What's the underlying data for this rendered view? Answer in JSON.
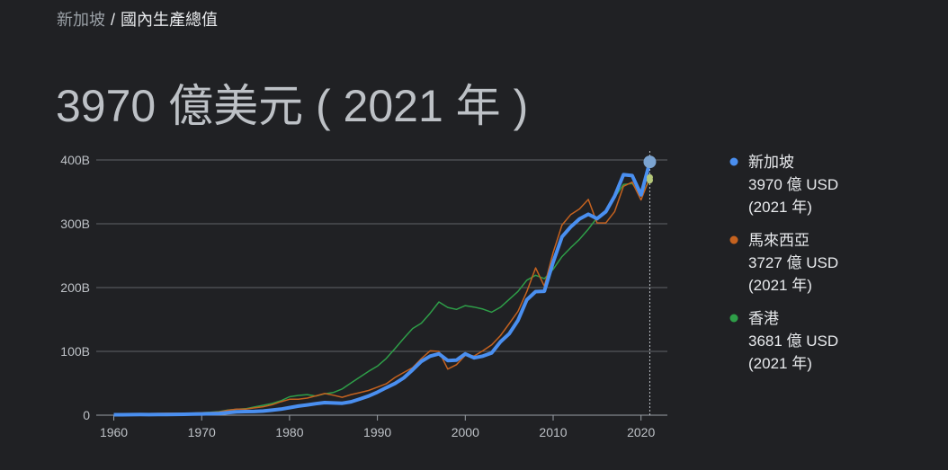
{
  "breadcrumb": {
    "country": "新加坡",
    "separator": "/",
    "topic": "國內生產總值"
  },
  "headline": "3970 億美元 ( 2021 年 )",
  "chart_data": {
    "type": "line",
    "x": [
      1960,
      1961,
      1962,
      1963,
      1964,
      1965,
      1966,
      1967,
      1968,
      1969,
      1970,
      1971,
      1972,
      1973,
      1974,
      1975,
      1976,
      1977,
      1978,
      1979,
      1980,
      1981,
      1982,
      1983,
      1984,
      1985,
      1986,
      1987,
      1988,
      1989,
      1990,
      1991,
      1992,
      1993,
      1994,
      1995,
      1996,
      1997,
      1998,
      1999,
      2000,
      2001,
      2002,
      2003,
      2004,
      2005,
      2006,
      2007,
      2008,
      2009,
      2010,
      2011,
      2012,
      2013,
      2014,
      2015,
      2016,
      2017,
      2018,
      2019,
      2020,
      2021
    ],
    "xlim": [
      1958,
      2023
    ],
    "xticks": [
      1960,
      1970,
      1980,
      1990,
      2000,
      2010,
      2020
    ],
    "ylim": [
      0,
      400
    ],
    "yticks": [
      0,
      {
        "value": 100,
        "label": "100B"
      },
      {
        "value": 200,
        "label": "200B"
      },
      {
        "value": 300,
        "label": "300B"
      },
      {
        "value": 400,
        "label": "400B"
      }
    ],
    "grid": true,
    "series": [
      {
        "name": "新加坡",
        "color": "#4a8ff0",
        "value_label": "3970 億 USD",
        "year_label": "(2021 年)",
        "values": [
          0.7,
          0.76,
          0.83,
          0.92,
          0.89,
          0.97,
          1.08,
          1.24,
          1.43,
          1.68,
          1.92,
          2.26,
          2.72,
          4.1,
          5.2,
          5.7,
          5.8,
          6.5,
          7.9,
          9.5,
          11.9,
          14.2,
          16.1,
          18.0,
          19.7,
          19.1,
          18.7,
          21.0,
          25.4,
          30.0,
          36.1,
          43.1,
          49.7,
          58.4,
          71.0,
          84.3,
          92.5,
          96.2,
          85.7,
          86.3,
          96.1,
          89.8,
          92.5,
          97.6,
          115,
          127.8,
          148.6,
          180.9,
          193.6,
          194.2,
          239.8,
          279.4,
          295.1,
          307.6,
          314.9,
          308.0,
          319.0,
          343.3,
          376.9,
          375.5,
          345.3,
          397.0
        ]
      },
      {
        "name": "馬來西亞",
        "color": "#c5621f",
        "value_label": "3727 億 USD",
        "year_label": "(2021 年)",
        "values": [
          1.9,
          1.9,
          2.0,
          2.2,
          2.4,
          2.7,
          2.9,
          2.98,
          3.0,
          3.3,
          3.9,
          4.2,
          5.0,
          7.7,
          9.5,
          9.6,
          11.4,
          13.3,
          16.4,
          21.0,
          24.9,
          25.0,
          26.8,
          30.3,
          33.9,
          31.2,
          28.0,
          32.2,
          35.3,
          38.8,
          44.0,
          49.1,
          59.2,
          66.9,
          74.5,
          88.7,
          100.9,
          100.0,
          72.2,
          79.1,
          93.8,
          92.8,
          100.8,
          110.2,
          124.7,
          143.5,
          162.7,
          193.5,
          230.8,
          202.3,
          255.0,
          297.9,
          314.4,
          323.3,
          338.1,
          301.4,
          301.3,
          319.1,
          358.8,
          365.2,
          337.3,
          372.7
        ]
      },
      {
        "name": "香港",
        "color": "#2e9e48",
        "value_label": "3681 億 USD",
        "year_label": "(2021 年)",
        "values": [
          1.3,
          1.4,
          1.6,
          1.9,
          2.2,
          2.4,
          2.6,
          2.7,
          2.7,
          3.2,
          3.8,
          4.5,
          5.7,
          8.0,
          9.3,
          10.1,
          12.9,
          15.5,
          18.3,
          22.5,
          28.9,
          31.0,
          32.3,
          29.9,
          33.5,
          35.7,
          41.1,
          50.6,
          59.7,
          68.8,
          76.9,
          88.9,
          104.3,
          120.4,
          135.8,
          144.2,
          159.7,
          177.4,
          168.9,
          165.8,
          171.7,
          169.4,
          166.3,
          161.4,
          169.1,
          181.6,
          194.0,
          211.6,
          219.3,
          214.0,
          228.6,
          248.5,
          262.6,
          275.7,
          291.5,
          309.4,
          320.9,
          341.3,
          361.7,
          363.1,
          344.9,
          368.1
        ]
      }
    ]
  }
}
